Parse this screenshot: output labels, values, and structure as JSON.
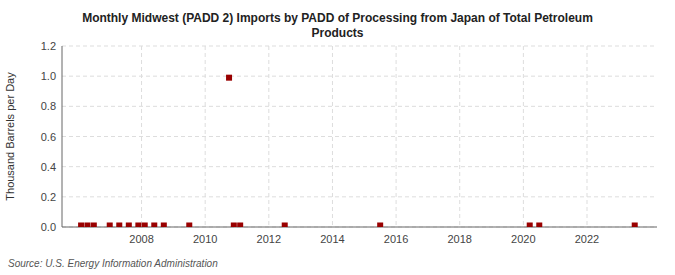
{
  "chart_data": {
    "type": "scatter",
    "title": "Monthly Midwest (PADD 2) Imports by PADD of Processing from Japan of Total Petroleum\nProducts",
    "y_label": "Thousand Barrels per Day",
    "annotation": "Source: U.S. Energy Information Administration",
    "x": [
      2006.1,
      2006.3,
      2006.5,
      2007.0,
      2007.3,
      2007.6,
      2007.9,
      2008.1,
      2008.4,
      2008.7,
      2009.5,
      2010.75,
      2010.9,
      2011.1,
      2012.5,
      2015.5,
      2020.2,
      2020.5,
      2023.5
    ],
    "values": [
      0.01,
      0.01,
      0.01,
      0.01,
      0.01,
      0.01,
      0.01,
      0.01,
      0.01,
      0.01,
      0.01,
      0.99,
      0.01,
      0.01,
      0.01,
      0.01,
      0.01,
      0.01,
      0.01
    ],
    "color": "#990000",
    "marker": "square",
    "xlim": [
      2005.5,
      2024.2
    ],
    "xticks": [
      2008,
      2010,
      2012,
      2014,
      2016,
      2018,
      2020,
      2022
    ],
    "ylim": [
      0.0,
      1.2
    ],
    "yticks": [
      {
        "value": 0.0,
        "label": "0.0"
      },
      0.2,
      0.4,
      0.6,
      0.8,
      {
        "value": 1.0,
        "label": "1.0"
      },
      1.2
    ],
    "grid": true
  }
}
